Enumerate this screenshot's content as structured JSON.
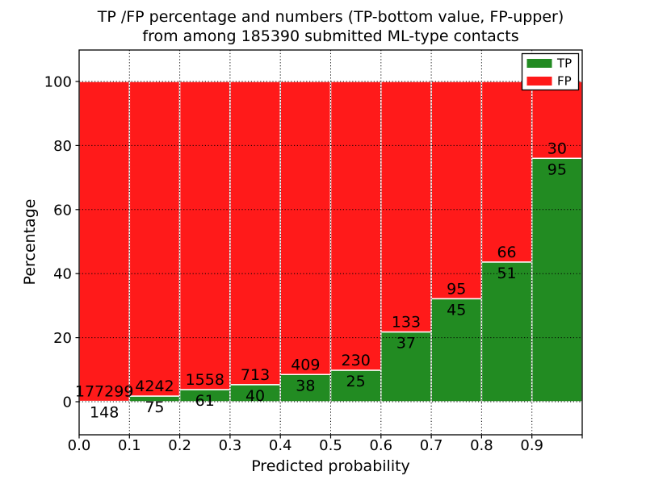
{
  "window": {
    "background": "#ffffff"
  },
  "chart_data": {
    "type": "bar",
    "stacked": true,
    "title_lines": [
      "TP /FP percentage and numbers (TP-bottom value, FP-upper)",
      "from among 185390 submitted ML-type contacts"
    ],
    "xlabel": "Predicted probability",
    "ylabel": "Percentage",
    "total_submitted": "185390",
    "x_tick_labels": [
      "0.0",
      "0.1",
      "0.2",
      "0.3",
      "0.4",
      "0.5",
      "0.6",
      "0.7",
      "0.8",
      "0.9"
    ],
    "y_tick_values": [
      0,
      20,
      40,
      60,
      80,
      100
    ],
    "xlim": [
      0.0,
      1.0
    ],
    "ylim": [
      -10,
      110
    ],
    "bin_width": 0.1,
    "grid": "dotted",
    "legend_position": "upper right",
    "colors": {
      "tp": "#228b22",
      "fp": "#ff1a1a",
      "bar_edge": "#ffffff",
      "grid": "#000000",
      "axes_border": "#000000",
      "plot_background": "#ffffff",
      "legend_background": "#ffffff"
    },
    "legend": {
      "entries": [
        {
          "label": "TP",
          "color_key": "tp"
        },
        {
          "label": "FP",
          "color_key": "fp"
        }
      ]
    },
    "series": [
      {
        "name": "TP",
        "role": "bottom",
        "counts": [
          148,
          75,
          61,
          40,
          38,
          25,
          37,
          45,
          51,
          95
        ]
      },
      {
        "name": "FP",
        "role": "top",
        "counts": [
          177299,
          4242,
          1558,
          713,
          409,
          230,
          133,
          95,
          66,
          30
        ]
      }
    ],
    "tp_percent_computed": [
      0.08,
      1.74,
      3.77,
      5.31,
      8.5,
      9.8,
      21.76,
      32.14,
      43.59,
      76.0
    ]
  }
}
